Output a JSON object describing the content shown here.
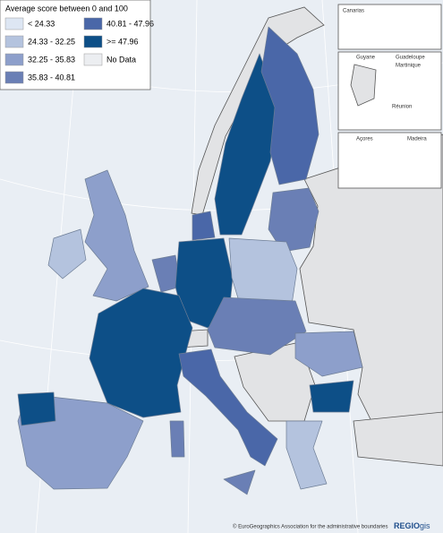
{
  "legend": {
    "title": "Average score between 0 and 100",
    "items": [
      {
        "label": "< 24.33",
        "color": "#dde6f3"
      },
      {
        "label": "24.33 - 32.25",
        "color": "#b4c3de"
      },
      {
        "label": "32.25 - 35.83",
        "color": "#8d9fcb"
      },
      {
        "label": "35.83 - 40.81",
        "color": "#6a7fb5"
      },
      {
        "label": "40.81 - 47.96",
        "color": "#4a67a8"
      },
      {
        "label": ">= 47.96",
        "color": "#0d4f87"
      },
      {
        "label": "No Data",
        "color": "#eceef1"
      }
    ]
  },
  "insets": [
    "Canarias",
    "Guyane",
    "Guadeloupe",
    "Martinique",
    "Réunion",
    "Açores",
    "Madeira"
  ],
  "footer": {
    "credit": "© EuroGeographics Association for the administrative boundaries",
    "logo_main": "REGIO",
    "logo_sub": "gis"
  }
}
